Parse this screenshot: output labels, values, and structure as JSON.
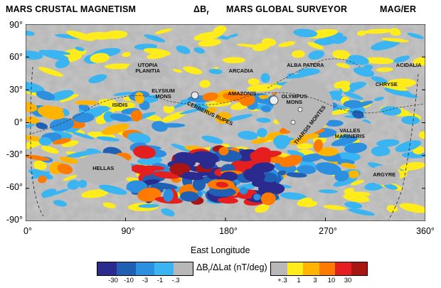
{
  "header": {
    "left_title": "MARS CRUSTAL MAGNETISM",
    "center_symbol": "ΔB",
    "center_sub": "r",
    "center_title": "MARS GLOBAL SURVEYOR",
    "right_title": "MAG/ER"
  },
  "axes": {
    "y_ticks": [
      "90°",
      "60°",
      "30°",
      "0°",
      "-30°",
      "-60°",
      "-90°"
    ],
    "x_ticks": [
      "0°",
      "90°",
      "180°",
      "270°",
      "360°"
    ],
    "x_label": "East Longitude",
    "lat_range": [
      -90,
      90
    ],
    "lon_range": [
      0,
      360
    ]
  },
  "places": [
    {
      "name": "UTOPIA\nPLANITIA",
      "lon": 110,
      "lat": 50
    },
    {
      "name": "ARCADIA",
      "lon": 194,
      "lat": 47
    },
    {
      "name": "ALBA PATERA",
      "lon": 252,
      "lat": 52
    },
    {
      "name": "ACIDALIA",
      "lon": 345,
      "lat": 52
    },
    {
      "name": "ELYSIUM\nMONS",
      "lon": 124,
      "lat": 26
    },
    {
      "name": "AMAZONIS",
      "lon": 195,
      "lat": 26
    },
    {
      "name": "OLYMPUS\nMONS",
      "lon": 242,
      "lat": 21
    },
    {
      "name": "ISIDIS",
      "lon": 85,
      "lat": 16
    },
    {
      "name": "CHRYSE",
      "lon": 325,
      "lat": 35
    },
    {
      "name": "VALLES\nMARINERIS",
      "lon": 292,
      "lat": -10
    },
    {
      "name": "HELLAS",
      "lon": 70,
      "lat": -42
    },
    {
      "name": "ARGYRE",
      "lon": 323,
      "lat": -48
    }
  ],
  "rotated_places": [
    {
      "name": "CERBERUS RUPES",
      "lon": 166,
      "lat": 8,
      "angle": 25
    },
    {
      "name": "THARSIS MONTES",
      "lon": 256,
      "lat": -2,
      "angle": -52
    }
  ],
  "colorbar": {
    "label_main": "ΔB",
    "label_sub": "r",
    "label_rest": "/ΔLat (nT/deg)",
    "negative": [
      {
        "color": "#2b2a8e"
      },
      {
        "color": "#1f5fb4"
      },
      {
        "color": "#2c8fe0"
      },
      {
        "color": "#3ab5f2"
      },
      {
        "color": "#b8b8b8"
      }
    ],
    "positive": [
      {
        "color": "#b8b8b8"
      },
      {
        "color": "#ffec1a"
      },
      {
        "color": "#ffb400"
      },
      {
        "color": "#ff7a00"
      },
      {
        "color": "#e51f1f"
      },
      {
        "color": "#a81512"
      }
    ],
    "neg_ticks": [
      "-30",
      "-10",
      "-3",
      "-1",
      "-.3"
    ],
    "pos_ticks": [
      "+.3",
      "1",
      "3",
      "10",
      "30"
    ]
  },
  "colors": {
    "dark_blue": "#2b2a8e",
    "blue": "#1f5fb4",
    "mid_blue": "#2c8fe0",
    "light_blue": "#3ab5f2",
    "gray": "#b8b8b8",
    "yellow": "#ffec1a",
    "orange": "#ffb400",
    "dark_orange": "#ff7a00",
    "red": "#e51f1f",
    "dark_red": "#a81512"
  }
}
